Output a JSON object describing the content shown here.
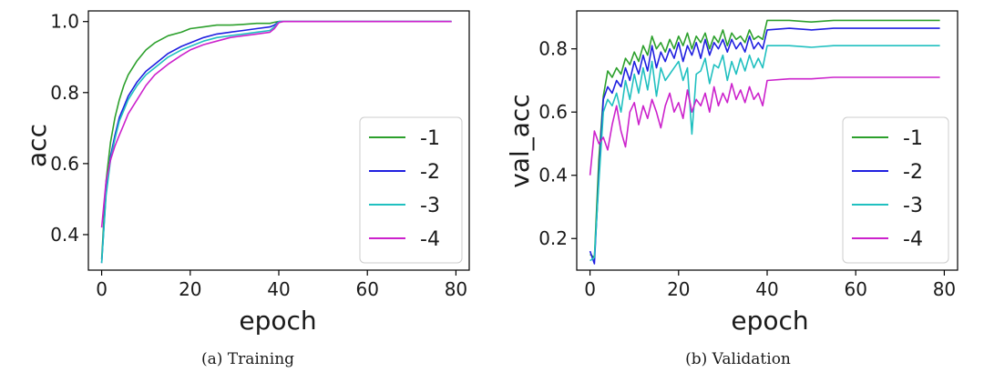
{
  "chart_data": [
    {
      "type": "line",
      "caption": "(a) Training",
      "xlabel": "epoch",
      "ylabel": "acc",
      "xlim": [
        -3,
        83
      ],
      "ylim": [
        0.3,
        1.03
      ],
      "xticks": [
        0,
        20,
        40,
        60,
        80
      ],
      "yticks": [
        0.4,
        0.6,
        0.8,
        1.0
      ],
      "ytick_labels": [
        "0.4",
        "0.6",
        "0.8",
        "1.0"
      ],
      "legend_position": "lower-right",
      "grid": false,
      "x": [
        0,
        1,
        2,
        3,
        4,
        5,
        6,
        8,
        10,
        12,
        15,
        18,
        20,
        23,
        26,
        29,
        32,
        35,
        38,
        39,
        40,
        41,
        42,
        45,
        50,
        55,
        60,
        65,
        70,
        75,
        79
      ],
      "series": [
        {
          "name": "-1",
          "color": "#2ca02c",
          "values": [
            0.33,
            0.55,
            0.66,
            0.73,
            0.78,
            0.82,
            0.85,
            0.89,
            0.92,
            0.94,
            0.96,
            0.97,
            0.98,
            0.985,
            0.99,
            0.99,
            0.992,
            0.995,
            0.995,
            0.998,
            1.0,
            1.0,
            1.0,
            1.0,
            1.0,
            1.0,
            1.0,
            1.0,
            1.0,
            1.0,
            1.0
          ]
        },
        {
          "name": "-2",
          "color": "#1f1fe0",
          "values": [
            0.32,
            0.52,
            0.62,
            0.68,
            0.73,
            0.76,
            0.79,
            0.83,
            0.86,
            0.88,
            0.91,
            0.93,
            0.94,
            0.955,
            0.965,
            0.97,
            0.975,
            0.98,
            0.985,
            0.99,
            1.0,
            1.0,
            1.0,
            1.0,
            1.0,
            1.0,
            1.0,
            1.0,
            1.0,
            1.0,
            1.0
          ]
        },
        {
          "name": "-3",
          "color": "#20c0c0",
          "values": [
            0.32,
            0.51,
            0.61,
            0.67,
            0.72,
            0.75,
            0.78,
            0.82,
            0.85,
            0.87,
            0.9,
            0.92,
            0.93,
            0.945,
            0.955,
            0.96,
            0.965,
            0.97,
            0.975,
            0.985,
            1.0,
            1.0,
            1.0,
            1.0,
            1.0,
            1.0,
            1.0,
            1.0,
            1.0,
            1.0,
            1.0
          ]
        },
        {
          "name": "-4",
          "color": "#cc22cc",
          "values": [
            0.42,
            0.55,
            0.61,
            0.65,
            0.68,
            0.71,
            0.74,
            0.78,
            0.82,
            0.85,
            0.88,
            0.905,
            0.92,
            0.935,
            0.945,
            0.955,
            0.96,
            0.965,
            0.97,
            0.98,
            0.997,
            1.0,
            1.0,
            1.0,
            1.0,
            1.0,
            1.0,
            1.0,
            1.0,
            1.0,
            1.0
          ]
        }
      ]
    },
    {
      "type": "line",
      "caption": "(b) Validation",
      "xlabel": "epoch",
      "ylabel": "val_acc",
      "xlim": [
        -3,
        83
      ],
      "ylim": [
        0.1,
        0.92
      ],
      "xticks": [
        0,
        20,
        40,
        60,
        80
      ],
      "yticks": [
        0.2,
        0.4,
        0.6,
        0.8
      ],
      "ytick_labels": [
        "0.2",
        "0.4",
        "0.6",
        "0.8"
      ],
      "legend_position": "lower-right",
      "grid": false,
      "x": [
        0,
        1,
        2,
        3,
        4,
        5,
        6,
        7,
        8,
        9,
        10,
        11,
        12,
        13,
        14,
        15,
        16,
        17,
        18,
        19,
        20,
        21,
        22,
        23,
        24,
        25,
        26,
        27,
        28,
        29,
        30,
        31,
        32,
        33,
        34,
        35,
        36,
        37,
        38,
        39,
        40,
        45,
        50,
        55,
        60,
        65,
        70,
        75,
        79
      ],
      "series": [
        {
          "name": "-1",
          "color": "#2ca02c",
          "values": [
            0.15,
            0.14,
            0.45,
            0.65,
            0.73,
            0.71,
            0.74,
            0.72,
            0.77,
            0.75,
            0.79,
            0.76,
            0.81,
            0.78,
            0.84,
            0.8,
            0.82,
            0.79,
            0.83,
            0.8,
            0.84,
            0.81,
            0.85,
            0.8,
            0.84,
            0.82,
            0.85,
            0.8,
            0.84,
            0.82,
            0.86,
            0.81,
            0.85,
            0.83,
            0.84,
            0.82,
            0.86,
            0.83,
            0.84,
            0.83,
            0.89,
            0.89,
            0.885,
            0.89,
            0.89,
            0.89,
            0.89,
            0.89,
            0.89
          ]
        },
        {
          "name": "-2",
          "color": "#1f1fe0",
          "values": [
            0.16,
            0.12,
            0.4,
            0.64,
            0.68,
            0.66,
            0.7,
            0.68,
            0.74,
            0.7,
            0.76,
            0.72,
            0.78,
            0.73,
            0.81,
            0.74,
            0.79,
            0.76,
            0.8,
            0.77,
            0.82,
            0.76,
            0.81,
            0.78,
            0.82,
            0.77,
            0.83,
            0.78,
            0.82,
            0.8,
            0.83,
            0.79,
            0.83,
            0.8,
            0.82,
            0.79,
            0.84,
            0.8,
            0.82,
            0.8,
            0.86,
            0.865,
            0.86,
            0.865,
            0.865,
            0.865,
            0.865,
            0.865,
            0.865
          ]
        },
        {
          "name": "-3",
          "color": "#20c0c0",
          "values": [
            0.13,
            0.14,
            0.38,
            0.6,
            0.64,
            0.62,
            0.66,
            0.6,
            0.7,
            0.64,
            0.72,
            0.66,
            0.74,
            0.67,
            0.76,
            0.65,
            0.74,
            0.7,
            0.72,
            0.74,
            0.76,
            0.7,
            0.74,
            0.53,
            0.72,
            0.73,
            0.77,
            0.69,
            0.75,
            0.74,
            0.78,
            0.7,
            0.76,
            0.72,
            0.77,
            0.73,
            0.78,
            0.74,
            0.77,
            0.74,
            0.81,
            0.81,
            0.805,
            0.81,
            0.81,
            0.81,
            0.81,
            0.81,
            0.81
          ]
        },
        {
          "name": "-4",
          "color": "#cc22cc",
          "values": [
            0.4,
            0.54,
            0.5,
            0.52,
            0.48,
            0.56,
            0.62,
            0.54,
            0.49,
            0.6,
            0.63,
            0.56,
            0.62,
            0.58,
            0.64,
            0.6,
            0.55,
            0.62,
            0.66,
            0.6,
            0.63,
            0.58,
            0.67,
            0.6,
            0.64,
            0.62,
            0.66,
            0.6,
            0.68,
            0.62,
            0.66,
            0.63,
            0.69,
            0.64,
            0.67,
            0.63,
            0.68,
            0.64,
            0.66,
            0.62,
            0.7,
            0.705,
            0.705,
            0.71,
            0.71,
            0.71,
            0.71,
            0.71,
            0.71
          ]
        }
      ]
    }
  ]
}
